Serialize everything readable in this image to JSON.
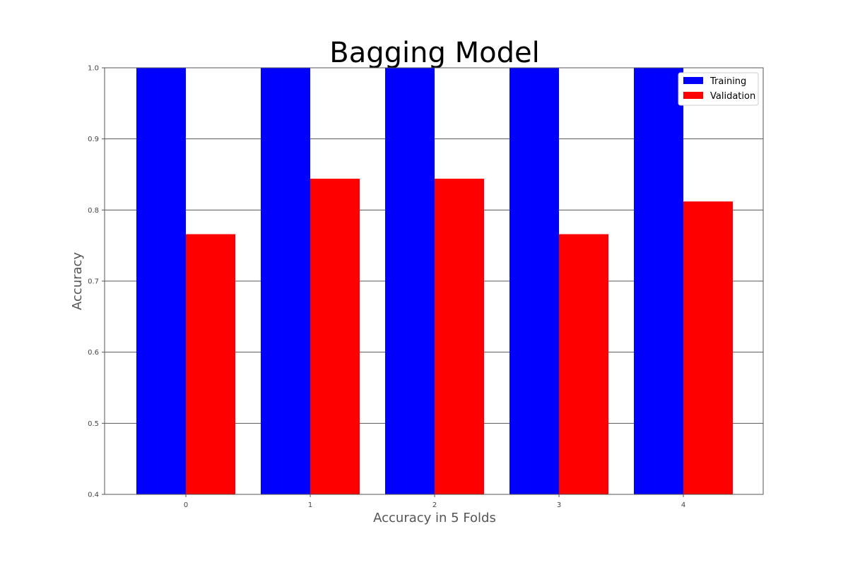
{
  "chart_data": {
    "type": "bar",
    "title": "Bagging Model",
    "xlabel": "Accuracy in 5 Folds",
    "ylabel": "Accuracy",
    "categories": [
      "0",
      "1",
      "2",
      "3",
      "4"
    ],
    "series": [
      {
        "name": "Training",
        "values": [
          1.0,
          1.0,
          1.0,
          1.0,
          1.0
        ],
        "color": "#0000ff"
      },
      {
        "name": "Validation",
        "values": [
          0.766,
          0.844,
          0.844,
          0.766,
          0.812
        ],
        "color": "#ff0000"
      }
    ],
    "ylim": [
      0.4,
      1.0
    ],
    "yticks": [
      "0.4",
      "0.5",
      "0.6",
      "0.7",
      "0.8",
      "0.9",
      "1.0"
    ],
    "grid": "horizontal",
    "legend_position": "top-right"
  }
}
